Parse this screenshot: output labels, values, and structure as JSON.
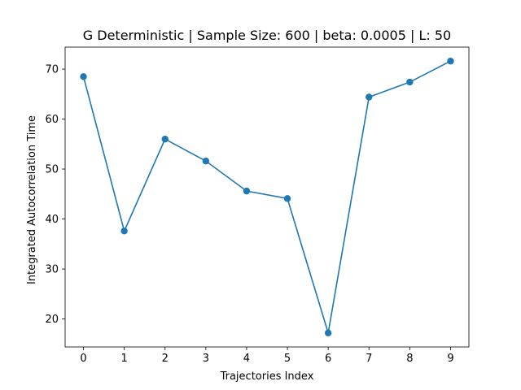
{
  "chart_data": {
    "type": "line",
    "title": "G Deterministic | Sample Size: 600 | beta: 0.0005 | L: 50",
    "xlabel": "Trajectories Index",
    "ylabel": "Integrated Autocorrelation Time",
    "x": [
      0,
      1,
      2,
      3,
      4,
      5,
      6,
      7,
      8,
      9
    ],
    "series": [
      {
        "values": [
          68.5,
          37.6,
          56.0,
          51.6,
          45.6,
          44.1,
          17.2,
          64.4,
          67.4,
          71.6
        ]
      }
    ],
    "xlim": [
      -0.45,
      9.45
    ],
    "ylim": [
      14.4,
      74.4
    ],
    "xticks": [
      0,
      1,
      2,
      3,
      4,
      5,
      6,
      7,
      8,
      9
    ],
    "yticks": [
      20,
      30,
      40,
      50,
      60,
      70
    ],
    "grid": false,
    "line_color": "#1f77b4",
    "marker": "circle"
  }
}
